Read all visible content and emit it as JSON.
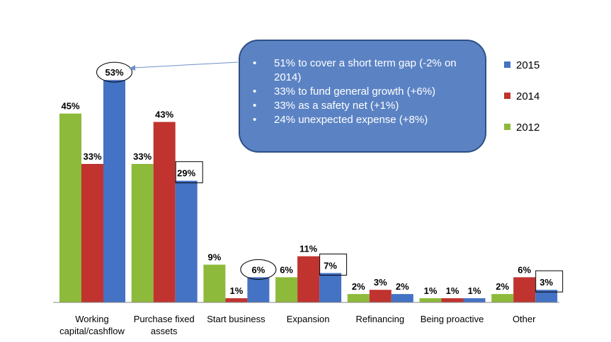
{
  "chart_data": {
    "type": "bar",
    "categories": [
      "Working capital/cashflow",
      "Purchase fixed assets",
      "Start business",
      "Expansion",
      "Refinancing",
      "Being proactive",
      "Other"
    ],
    "category_lines": [
      [
        "Working",
        "capital/cashflow"
      ],
      [
        "Purchase fixed",
        "assets"
      ],
      [
        "Start business"
      ],
      [
        "Expansion"
      ],
      [
        "Refinancing"
      ],
      [
        "Being proactive"
      ],
      [
        "Other"
      ]
    ],
    "series": [
      {
        "name": "2012",
        "color": "#8dba3a",
        "values": [
          45,
          33,
          9,
          6,
          2,
          1,
          2
        ],
        "labels": [
          "45%",
          "33%",
          "9%",
          "6%",
          "2%",
          "1%",
          "2%"
        ]
      },
      {
        "name": "2014",
        "color": "#c0332f",
        "values": [
          33,
          43,
          1,
          11,
          3,
          1,
          6
        ],
        "labels": [
          "33%",
          "43%",
          "1%",
          "11%",
          "3%",
          "1%",
          "6%"
        ]
      },
      {
        "name": "2015",
        "color": "#4472c4",
        "values": [
          53,
          29,
          6,
          7,
          2,
          1,
          3
        ],
        "labels": [
          "53%",
          "29%",
          "6%",
          "7%",
          "2%",
          "1%",
          "3%"
        ]
      }
    ],
    "legend_order": [
      "2015",
      "2014",
      "2012"
    ],
    "legend_position": "right",
    "ylim": [
      0,
      60
    ],
    "grid": false,
    "annotations": {
      "circled": [
        {
          "series": "2015",
          "category": "Working capital/cashflow"
        },
        {
          "series": "2015",
          "category": "Start business"
        }
      ],
      "boxed": [
        {
          "series": "2015",
          "category": "Purchase fixed assets"
        },
        {
          "series": "2015",
          "category": "Expansion"
        },
        {
          "series": "2015",
          "category": "Other"
        }
      ]
    }
  },
  "callout": {
    "bullets": [
      "51% to cover a short term gap  (-2% on 2014)",
      "33% to fund general growth (+6%)",
      "33% as a safety net (+1%)",
      "24% unexpected expense (+8%)"
    ],
    "bullet_symbol": "•"
  }
}
